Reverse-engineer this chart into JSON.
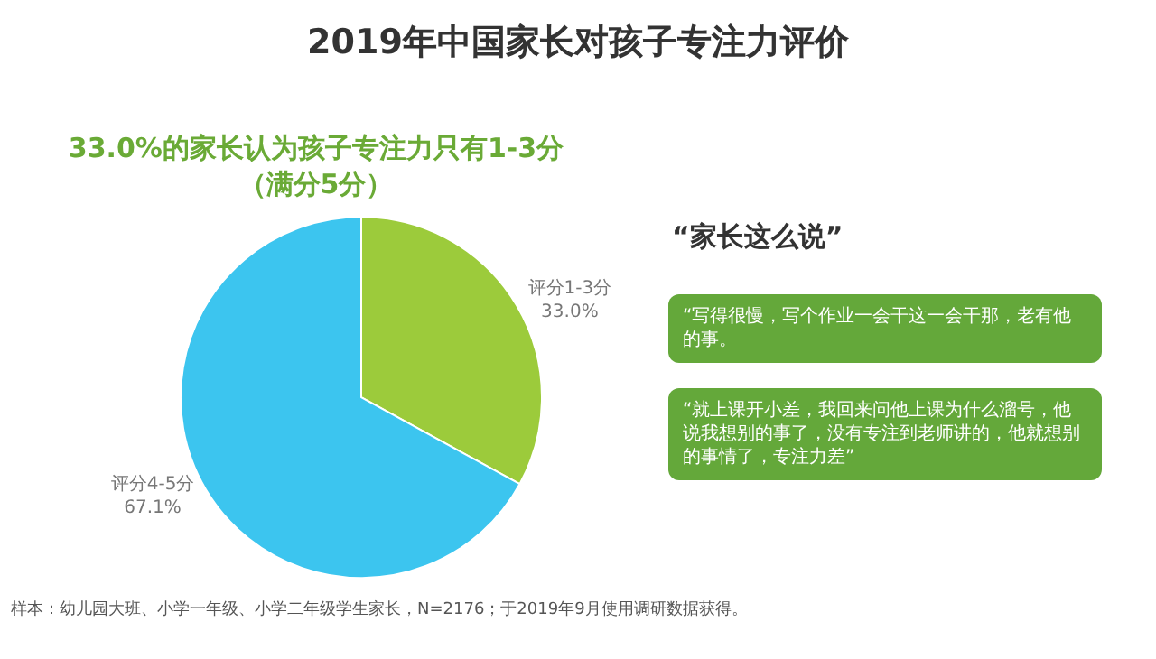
{
  "chart_data": {
    "type": "pie",
    "title": "2019年中国家长对孩子专注力评价",
    "subtitle": "33.0%的家长认为孩子专注力只有1-3分（满分5分）",
    "categories": [
      "评分1-3分",
      "评分4-5分"
    ],
    "values": [
      33.0,
      67.1
    ],
    "value_labels": [
      "33.0%",
      "67.1%"
    ],
    "colors": [
      "#9ccb3b",
      "#3cc5ef"
    ],
    "annotations": [
      "“家长这么说”",
      "“写得很慢，写个作业一会干这一会干那，老有他的事。",
      "“就上课开小差，我回来问他上课为什么溜号，他说我想别的事了，没有专注到老师讲的，他就想别的事情了，专注力差”",
      "样本：幼儿园大班、小学一年级、小学二年级学生家长，N=2176；于2019年9月使用调研数据获得。"
    ]
  }
}
